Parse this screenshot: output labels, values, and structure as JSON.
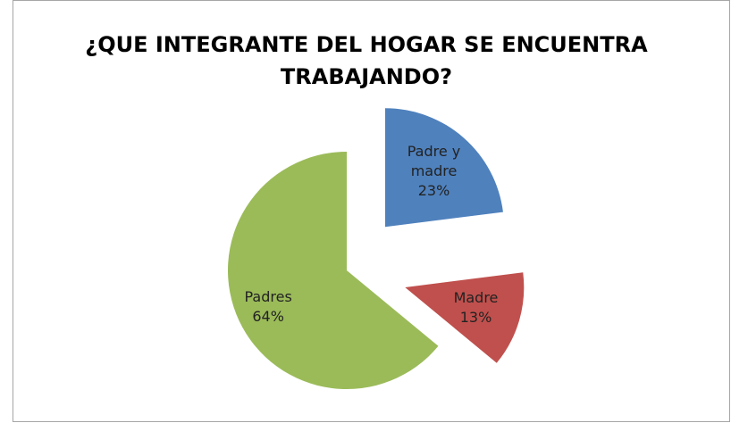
{
  "chart_data": {
    "type": "pie",
    "title": "¿QUE INTEGRANTE DEL HOGAR SE ENCUENTRA TRABAJANDO?",
    "categories": [
      "Padre y madre",
      "Madre",
      "Padres"
    ],
    "values": [
      23,
      13,
      64
    ],
    "value_labels": [
      "23%",
      "13%",
      "64%"
    ],
    "colors": [
      "#4f81bd",
      "#c0504d",
      "#9bbb59"
    ]
  }
}
